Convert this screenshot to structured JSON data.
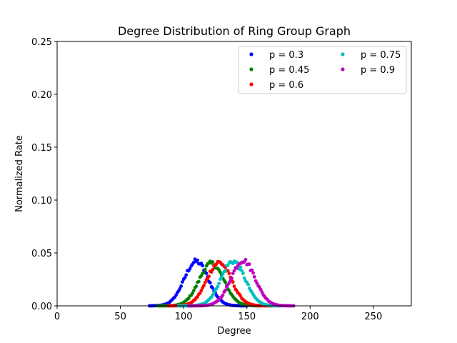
{
  "chart_data": {
    "type": "scatter",
    "title": "Degree Distribution of Ring Group Graph",
    "xlabel": "Degree",
    "ylabel": "Normalized Rate",
    "xlim": [
      0,
      280
    ],
    "ylim": [
      0,
      0.25
    ],
    "xticks": [
      "0",
      "50",
      "100",
      "150",
      "200",
      "250"
    ],
    "xtick_values": [
      0,
      50,
      100,
      150,
      200,
      250
    ],
    "yticks": [
      "0.00",
      "0.05",
      "0.10",
      "0.15",
      "0.20",
      "0.25"
    ],
    "ytick_values": [
      0,
      0.05,
      0.1,
      0.15,
      0.2,
      0.25
    ],
    "grid": false,
    "legend_position": "top-right",
    "legend_columns": 2,
    "series": [
      {
        "name": "p = 0.3",
        "color": "#0000ff",
        "center": 110,
        "peak": 0.042,
        "sigma": 9.5,
        "x_range": [
          73,
          150
        ]
      },
      {
        "name": "p = 0.45",
        "color": "#008000",
        "center": 122,
        "peak": 0.04,
        "sigma": 9.8,
        "x_range": [
          80,
          160
        ]
      },
      {
        "name": "p = 0.6",
        "color": "#ff0000",
        "center": 128,
        "peak": 0.041,
        "sigma": 9.7,
        "x_range": [
          88,
          170
        ]
      },
      {
        "name": "p = 0.75",
        "color": "#00bfbf",
        "center": 139,
        "peak": 0.042,
        "sigma": 9.6,
        "x_range": [
          96,
          178
        ]
      },
      {
        "name": "p = 0.9",
        "color": "#bf00bf",
        "center": 147,
        "peak": 0.043,
        "sigma": 9.6,
        "x_range": [
          104,
          187
        ]
      }
    ]
  }
}
